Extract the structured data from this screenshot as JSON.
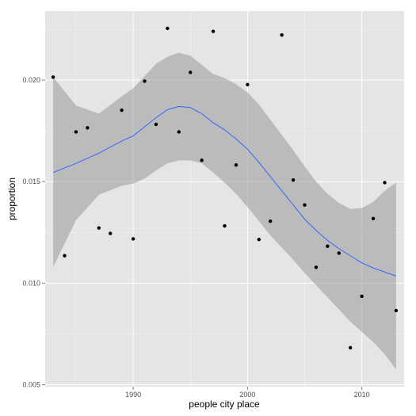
{
  "chart_data": {
    "type": "scatter",
    "xlabel": "people city place",
    "ylabel": "proportion",
    "xlim": [
      1982.3,
      2013.7
    ],
    "ylim": [
      0.0049,
      0.0234
    ],
    "x_ticks": [
      1990,
      2000,
      2010
    ],
    "x_tick_labels": [
      "1990",
      "2000",
      "2010"
    ],
    "y_ticks": [
      0.005,
      0.01,
      0.015,
      0.02
    ],
    "y_tick_labels": [
      "0.005",
      "0.010",
      "0.015",
      "0.020"
    ],
    "grid": true,
    "colors": {
      "panel": "#e5e5e5",
      "grid": "#ffffff",
      "points": "#000000",
      "smooth_line": "#3366ff",
      "ribbon": "#999999"
    },
    "points": [
      {
        "x": 1983,
        "y": 0.02015
      },
      {
        "x": 1984,
        "y": 0.01135
      },
      {
        "x": 1985,
        "y": 0.01745
      },
      {
        "x": 1986,
        "y": 0.01765
      },
      {
        "x": 1987,
        "y": 0.01272
      },
      {
        "x": 1988,
        "y": 0.01245
      },
      {
        "x": 1989,
        "y": 0.01852
      },
      {
        "x": 1990,
        "y": 0.01218
      },
      {
        "x": 1991,
        "y": 0.01995
      },
      {
        "x": 1992,
        "y": 0.01782
      },
      {
        "x": 1993,
        "y": 0.02255
      },
      {
        "x": 1994,
        "y": 0.01745
      },
      {
        "x": 1995,
        "y": 0.02038
      },
      {
        "x": 1996,
        "y": 0.01605
      },
      {
        "x": 1997,
        "y": 0.0224
      },
      {
        "x": 1998,
        "y": 0.01282
      },
      {
        "x": 1999,
        "y": 0.01582
      },
      {
        "x": 2000,
        "y": 0.01978
      },
      {
        "x": 2001,
        "y": 0.01215
      },
      {
        "x": 2002,
        "y": 0.01305
      },
      {
        "x": 2003,
        "y": 0.02222
      },
      {
        "x": 2004,
        "y": 0.01508
      },
      {
        "x": 2005,
        "y": 0.01385
      },
      {
        "x": 2006,
        "y": 0.01078
      },
      {
        "x": 2007,
        "y": 0.01182
      },
      {
        "x": 2008,
        "y": 0.01148
      },
      {
        "x": 2009,
        "y": 0.00682
      },
      {
        "x": 2010,
        "y": 0.00935
      },
      {
        "x": 2011,
        "y": 0.01318
      },
      {
        "x": 2012,
        "y": 0.01495
      },
      {
        "x": 2013,
        "y": 0.00865
      }
    ],
    "smooth": {
      "x": [
        1983,
        1985,
        1987,
        1989,
        1990,
        1991,
        1992,
        1993,
        1994,
        1995,
        1996,
        1997,
        1998,
        1999,
        2000,
        2001,
        2002,
        2003,
        2004,
        2005,
        2006,
        2007,
        2008,
        2009,
        2010,
        2011,
        2012,
        2013
      ],
      "y": [
        0.01545,
        0.0159,
        0.0164,
        0.017,
        0.01725,
        0.0177,
        0.01815,
        0.01855,
        0.0187,
        0.01865,
        0.01835,
        0.0179,
        0.01755,
        0.0171,
        0.0166,
        0.01595,
        0.01525,
        0.01455,
        0.01385,
        0.01315,
        0.0126,
        0.0121,
        0.0117,
        0.01135,
        0.011,
        0.01075,
        0.01055,
        0.01035
      ],
      "lower": [
        0.0108,
        0.0131,
        0.01435,
        0.0148,
        0.0149,
        0.01515,
        0.01555,
        0.0159,
        0.01605,
        0.01605,
        0.0159,
        0.01545,
        0.01495,
        0.0144,
        0.01375,
        0.01305,
        0.01235,
        0.01175,
        0.01115,
        0.0105,
        0.0099,
        0.0093,
        0.0087,
        0.0081,
        0.0076,
        0.0071,
        0.0065,
        0.00575
      ],
      "upper": [
        0.02015,
        0.01875,
        0.01835,
        0.0192,
        0.0196,
        0.0202,
        0.0208,
        0.02115,
        0.02135,
        0.0212,
        0.02075,
        0.0203,
        0.0201,
        0.0198,
        0.0194,
        0.0188,
        0.01805,
        0.0173,
        0.01655,
        0.01575,
        0.015,
        0.0144,
        0.01395,
        0.01365,
        0.0137,
        0.014,
        0.01455,
        0.01495
      ]
    }
  }
}
